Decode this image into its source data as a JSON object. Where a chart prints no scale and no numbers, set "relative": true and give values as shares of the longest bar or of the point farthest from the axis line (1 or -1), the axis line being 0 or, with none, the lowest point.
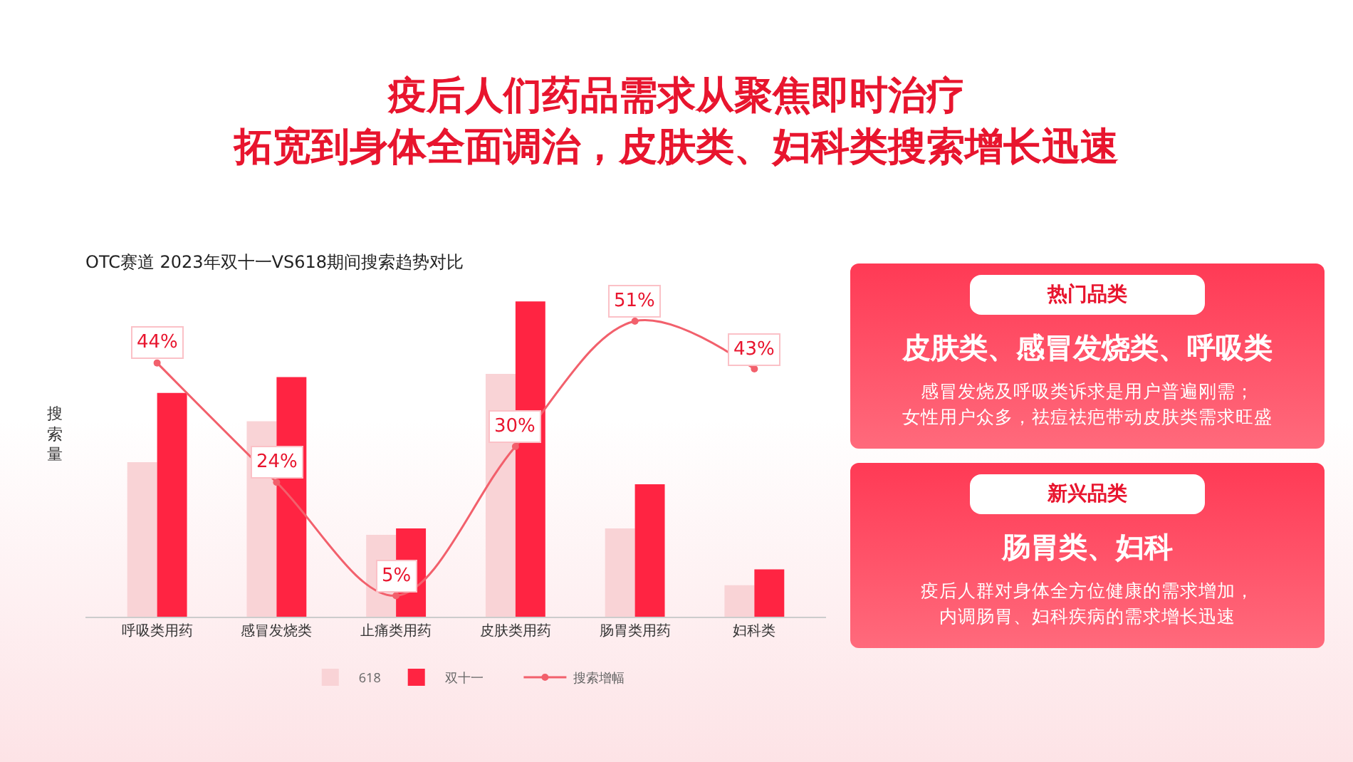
{
  "chart_data": [
    {
      "type": "bar",
      "title": "疫后人们药品需求从聚焦即时治疗",
      "subtitle": "拓宽到身体全面调治，皮肤类、妇科类搜索增长迅速",
      "annotations": [
        "OTC赛道 2023年双十一VS618期间搜索趋势对比"
      ],
      "ylabel": "搜索量",
      "relative": true,
      "legend": "bottom",
      "categories": [
        "呼吸类用药",
        "感冒发烧类",
        "止痛类用药",
        "皮肤类用药",
        "肠胃类用药",
        "妇科类"
      ],
      "series": [
        {
          "name": "618",
          "color": "#f9d3d6",
          "values": [
            0.49,
            0.62,
            0.26,
            0.77,
            0.28,
            0.1
          ]
        },
        {
          "name": "双十一",
          "color": "#ff2442",
          "values": [
            0.71,
            0.76,
            0.28,
            1,
            0.42,
            0.15
          ]
        }
      ]
    },
    {
      "type": "line",
      "legend": "bottom",
      "marker": "circle",
      "categories": [
        null,
        null,
        null,
        null,
        null,
        null
      ],
      "series": [
        {
          "name": "搜索增幅",
          "color": "#f2606c",
          "values": [
            44,
            24,
            5,
            30,
            51,
            43
          ],
          "value_labels": [
            "44%",
            "24%",
            "5%",
            "30%",
            "51%",
            "43%"
          ]
        }
      ]
    },
    {
      "type": "other",
      "title": "热门品类",
      "subtitle": "皮肤类、感冒发烧类、呼吸类",
      "annotations": [
        "感冒发烧及呼吸类诉求是用户普遍刚需；",
        "女性用户众多，祛痘祛疤带动皮肤类需求旺盛"
      ]
    },
    {
      "type": "other",
      "title": "新兴品类",
      "subtitle": "肠胃类、妇科",
      "annotations": [
        "疫后人群对身体全方位健康的需求增加，",
        "内调肠胃、妇科疾病的需求增长迅速"
      ]
    }
  ]
}
